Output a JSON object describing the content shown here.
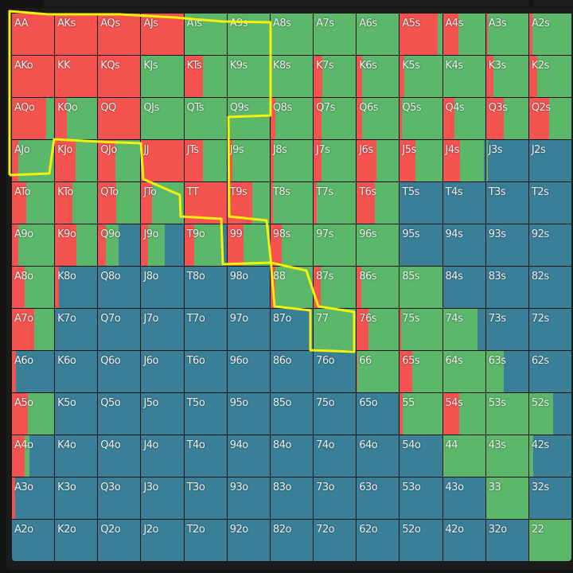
{
  "colors": {
    "raise": "#f5534f",
    "call": "#5bb76a",
    "fold": "#3a7f98"
  },
  "grid": [
    [
      {
        "h": "AA",
        "r": 1,
        "c": 0
      },
      {
        "h": "AKs",
        "r": 1,
        "c": 0
      },
      {
        "h": "AQs",
        "r": 1,
        "c": 0
      },
      {
        "h": "AJs",
        "r": 1,
        "c": 0
      },
      {
        "h": "ATs",
        "r": 0,
        "c": 1
      },
      {
        "h": "A9s",
        "r": 0,
        "c": 1
      },
      {
        "h": "A8s",
        "r": 0,
        "c": 1
      },
      {
        "h": "A7s",
        "r": 0,
        "c": 1
      },
      {
        "h": "A6s",
        "r": 0,
        "c": 1
      },
      {
        "h": "A5s",
        "r": 0.9,
        "c": 0.1
      },
      {
        "h": "A4s",
        "r": 0.37,
        "c": 0.63
      },
      {
        "h": "A3s",
        "r": 0.05,
        "c": 0.95
      },
      {
        "h": "A2s",
        "r": 0.08,
        "c": 0.92
      }
    ],
    [
      {
        "h": "AKo",
        "r": 1,
        "c": 0
      },
      {
        "h": "KK",
        "r": 1,
        "c": 0
      },
      {
        "h": "KQs",
        "r": 1,
        "c": 0
      },
      {
        "h": "KJs",
        "r": 0,
        "c": 1
      },
      {
        "h": "KTs",
        "r": 0.44,
        "c": 0.56
      },
      {
        "h": "K9s",
        "r": 0,
        "c": 1
      },
      {
        "h": "K8s",
        "r": 0,
        "c": 1
      },
      {
        "h": "K7s",
        "r": 0.2,
        "c": 0.8
      },
      {
        "h": "K6s",
        "r": 0.12,
        "c": 0.88
      },
      {
        "h": "K5s",
        "r": 0.1,
        "c": 0.9
      },
      {
        "h": "K4s",
        "r": 0,
        "c": 1
      },
      {
        "h": "K3s",
        "r": 0.18,
        "c": 0.82
      },
      {
        "h": "K2s",
        "r": 0.2,
        "c": 0.8
      }
    ],
    [
      {
        "h": "AQo",
        "r": 0.8,
        "c": 0.2
      },
      {
        "h": "KQo",
        "r": 0.28,
        "c": 0.72
      },
      {
        "h": "QQ",
        "r": 1,
        "c": 0
      },
      {
        "h": "QJs",
        "r": 0,
        "c": 1
      },
      {
        "h": "QTs",
        "r": 0,
        "c": 1
      },
      {
        "h": "Q9s",
        "r": 0,
        "c": 1
      },
      {
        "h": "Q8s",
        "r": 0.12,
        "c": 0.88
      },
      {
        "h": "Q7s",
        "r": 0.18,
        "c": 0.82
      },
      {
        "h": "Q6s",
        "r": 0.12,
        "c": 0.88
      },
      {
        "h": "Q5s",
        "r": 0.04,
        "c": 0.96
      },
      {
        "h": "Q4s",
        "r": 0.28,
        "c": 0.72
      },
      {
        "h": "Q3s",
        "r": 0.42,
        "c": 0.58
      },
      {
        "h": "Q2s",
        "r": 0.48,
        "c": 0.52
      }
    ],
    [
      {
        "h": "AJo",
        "r": 0.15,
        "c": 0.85
      },
      {
        "h": "KJo",
        "r": 0.48,
        "c": 0.52
      },
      {
        "h": "QJo",
        "r": 0.4,
        "c": 0.6
      },
      {
        "h": "JJ",
        "r": 1,
        "c": 0
      },
      {
        "h": "JTs",
        "r": 0.44,
        "c": 0.56
      },
      {
        "h": "J9s",
        "r": 0.12,
        "c": 0.88
      },
      {
        "h": "J8s",
        "r": 0.08,
        "c": 0.92
      },
      {
        "h": "J7s",
        "r": 0.18,
        "c": 0.82
      },
      {
        "h": "J6s",
        "r": 0.47,
        "c": 0.53
      },
      {
        "h": "J5s",
        "r": 0.36,
        "c": 0.64
      },
      {
        "h": "J4s",
        "r": 0.4,
        "c": 0.57
      },
      {
        "h": "J3s",
        "r": 0,
        "c": 0.05
      },
      {
        "h": "J2s",
        "r": 0,
        "c": 0
      }
    ],
    [
      {
        "h": "ATo",
        "r": 0.33,
        "c": 0.67
      },
      {
        "h": "KTo",
        "r": 0.42,
        "c": 0.58
      },
      {
        "h": "QTo",
        "r": 0.42,
        "c": 0.58
      },
      {
        "h": "JTo",
        "r": 0.26,
        "c": 0.74
      },
      {
        "h": "TT",
        "r": 1,
        "c": 0
      },
      {
        "h": "T9s",
        "r": 0.59,
        "c": 0.41
      },
      {
        "h": "T8s",
        "r": 0.06,
        "c": 0.94
      },
      {
        "h": "T7s",
        "r": 0.08,
        "c": 0.92
      },
      {
        "h": "T6s",
        "r": 0.42,
        "c": 0.58
      },
      {
        "h": "T5s",
        "r": 0,
        "c": 0
      },
      {
        "h": "T4s",
        "r": 0,
        "c": 0
      },
      {
        "h": "T3s",
        "r": 0,
        "c": 0
      },
      {
        "h": "T2s",
        "r": 0,
        "c": 0
      }
    ],
    [
      {
        "h": "A9o",
        "r": 0.15,
        "c": 0.85
      },
      {
        "h": "K9o",
        "r": 0.5,
        "c": 0.5
      },
      {
        "h": "Q9o",
        "r": 0.19,
        "c": 0.3
      },
      {
        "h": "J9o",
        "r": 0.17,
        "c": 0.38
      },
      {
        "h": "T9o",
        "r": 0.23,
        "c": 0.68
      },
      {
        "h": "99",
        "r": 0.38,
        "c": 0.62
      },
      {
        "h": "98s",
        "r": 0.27,
        "c": 0.73
      },
      {
        "h": "97s",
        "r": 0,
        "c": 1
      },
      {
        "h": "96s",
        "r": 0,
        "c": 1
      },
      {
        "h": "95s",
        "r": 0,
        "c": 0
      },
      {
        "h": "94s",
        "r": 0,
        "c": 0
      },
      {
        "h": "93s",
        "r": 0,
        "c": 0
      },
      {
        "h": "92s",
        "r": 0,
        "c": 0
      }
    ],
    [
      {
        "h": "A8o",
        "r": 0.3,
        "c": 0.7
      },
      {
        "h": "K8o",
        "r": 0.1,
        "c": 0
      },
      {
        "h": "Q8o",
        "r": 0,
        "c": 0
      },
      {
        "h": "J8o",
        "r": 0,
        "c": 0
      },
      {
        "h": "T8o",
        "r": 0,
        "c": 0
      },
      {
        "h": "98o",
        "r": 0,
        "c": 0
      },
      {
        "h": "88",
        "r": 0.12,
        "c": 0.88
      },
      {
        "h": "87s",
        "r": 0.17,
        "c": 0.83
      },
      {
        "h": "86s",
        "r": 0.1,
        "c": 0.9
      },
      {
        "h": "85s",
        "r": 0,
        "c": 1
      },
      {
        "h": "84s",
        "r": 0,
        "c": 0
      },
      {
        "h": "83s",
        "r": 0,
        "c": 0
      },
      {
        "h": "82s",
        "r": 0,
        "c": 0
      }
    ],
    [
      {
        "h": "A7o",
        "r": 0.53,
        "c": 0.47
      },
      {
        "h": "K7o",
        "r": 0,
        "c": 0
      },
      {
        "h": "Q7o",
        "r": 0,
        "c": 0
      },
      {
        "h": "J7o",
        "r": 0,
        "c": 0
      },
      {
        "h": "T7o",
        "r": 0,
        "c": 0
      },
      {
        "h": "97o",
        "r": 0,
        "c": 0
      },
      {
        "h": "87o",
        "r": 0,
        "c": 0
      },
      {
        "h": "77",
        "r": 0,
        "c": 1
      },
      {
        "h": "76s",
        "r": 0.27,
        "c": 0.73
      },
      {
        "h": "75s",
        "r": 0.03,
        "c": 0.97
      },
      {
        "h": "74s",
        "r": 0,
        "c": 0.81
      },
      {
        "h": "73s",
        "r": 0,
        "c": 0
      },
      {
        "h": "72s",
        "r": 0,
        "c": 0
      }
    ],
    [
      {
        "h": "A6o",
        "r": 0.1,
        "c": 0
      },
      {
        "h": "K6o",
        "r": 0,
        "c": 0
      },
      {
        "h": "Q6o",
        "r": 0,
        "c": 0
      },
      {
        "h": "J6o",
        "r": 0,
        "c": 0
      },
      {
        "h": "T6o",
        "r": 0,
        "c": 0
      },
      {
        "h": "96o",
        "r": 0,
        "c": 0
      },
      {
        "h": "86o",
        "r": 0,
        "c": 0
      },
      {
        "h": "76o",
        "r": 0,
        "c": 0
      },
      {
        "h": "66",
        "r": 0.02,
        "c": 0.98
      },
      {
        "h": "65s",
        "r": 0.3,
        "c": 0.7
      },
      {
        "h": "64s",
        "r": 0,
        "c": 1
      },
      {
        "h": "63s",
        "r": 0,
        "c": 0.42
      },
      {
        "h": "62s",
        "r": 0,
        "c": 0
      }
    ],
    [
      {
        "h": "A5o",
        "r": 0.38,
        "c": 0.62
      },
      {
        "h": "K5o",
        "r": 0,
        "c": 0
      },
      {
        "h": "Q5o",
        "r": 0,
        "c": 0
      },
      {
        "h": "J5o",
        "r": 0,
        "c": 0
      },
      {
        "h": "T5o",
        "r": 0,
        "c": 0
      },
      {
        "h": "95o",
        "r": 0,
        "c": 0
      },
      {
        "h": "85o",
        "r": 0,
        "c": 0
      },
      {
        "h": "75o",
        "r": 0,
        "c": 0
      },
      {
        "h": "65o",
        "r": 0,
        "c": 0
      },
      {
        "h": "55",
        "r": 0.06,
        "c": 0.94
      },
      {
        "h": "54s",
        "r": 0.39,
        "c": 0.61
      },
      {
        "h": "53s",
        "r": 0,
        "c": 1
      },
      {
        "h": "52s",
        "r": 0,
        "c": 0.57
      }
    ],
    [
      {
        "h": "A4o",
        "r": 0.31,
        "c": 0.1
      },
      {
        "h": "K4o",
        "r": 0,
        "c": 0
      },
      {
        "h": "Q4o",
        "r": 0,
        "c": 0
      },
      {
        "h": "J4o",
        "r": 0,
        "c": 0
      },
      {
        "h": "T4o",
        "r": 0,
        "c": 0
      },
      {
        "h": "94o",
        "r": 0,
        "c": 0
      },
      {
        "h": "84o",
        "r": 0,
        "c": 0
      },
      {
        "h": "74o",
        "r": 0,
        "c": 0
      },
      {
        "h": "64o",
        "r": 0,
        "c": 0
      },
      {
        "h": "54o",
        "r": 0,
        "c": 0
      },
      {
        "h": "44",
        "r": 0,
        "c": 1
      },
      {
        "h": "43s",
        "r": 0,
        "c": 1
      },
      {
        "h": "42s",
        "r": 0,
        "c": 0.1
      }
    ],
    [
      {
        "h": "A3o",
        "r": 0.08,
        "c": 0
      },
      {
        "h": "K3o",
        "r": 0,
        "c": 0
      },
      {
        "h": "Q3o",
        "r": 0,
        "c": 0
      },
      {
        "h": "J3o",
        "r": 0,
        "c": 0
      },
      {
        "h": "T3o",
        "r": 0,
        "c": 0
      },
      {
        "h": "93o",
        "r": 0,
        "c": 0
      },
      {
        "h": "83o",
        "r": 0,
        "c": 0
      },
      {
        "h": "73o",
        "r": 0,
        "c": 0
      },
      {
        "h": "63o",
        "r": 0,
        "c": 0
      },
      {
        "h": "53o",
        "r": 0,
        "c": 0
      },
      {
        "h": "43o",
        "r": 0,
        "c": 0
      },
      {
        "h": "33",
        "r": 0,
        "c": 1
      },
      {
        "h": "32s",
        "r": 0,
        "c": 0
      }
    ],
    [
      {
        "h": "A2o",
        "r": 0,
        "c": 0
      },
      {
        "h": "K2o",
        "r": 0,
        "c": 0
      },
      {
        "h": "Q2o",
        "r": 0,
        "c": 0
      },
      {
        "h": "J2o",
        "r": 0,
        "c": 0
      },
      {
        "h": "T2o",
        "r": 0,
        "c": 0
      },
      {
        "h": "92o",
        "r": 0,
        "c": 0
      },
      {
        "h": "82o",
        "r": 0,
        "c": 0
      },
      {
        "h": "72o",
        "r": 0,
        "c": 0
      },
      {
        "h": "62o",
        "r": 0,
        "c": 0
      },
      {
        "h": "52o",
        "r": 0,
        "c": 0
      },
      {
        "h": "42o",
        "r": 0,
        "c": 0
      },
      {
        "h": "32o",
        "r": 0,
        "c": 0
      },
      {
        "h": "22",
        "r": 0,
        "c": 1
      }
    ]
  ]
}
